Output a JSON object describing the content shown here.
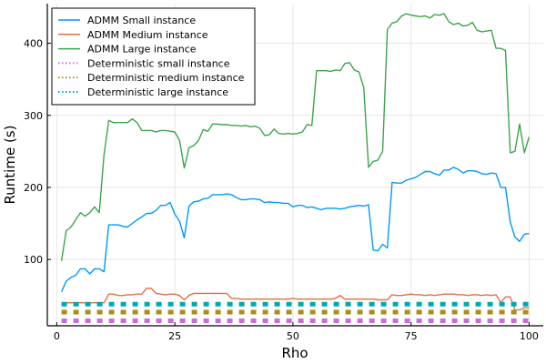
{
  "chart_data": {
    "type": "line",
    "title": "",
    "xlabel": "Rho",
    "ylabel": "Runtime (s)",
    "xlim": [
      -2,
      103
    ],
    "ylim": [
      8,
      455
    ],
    "xticks": [
      0,
      25,
      50,
      75,
      100
    ],
    "yticks": [
      100,
      200,
      300,
      400
    ],
    "grid": true,
    "legend_position": "top-left",
    "x": [
      1,
      2,
      3,
      4,
      5,
      6,
      7,
      8,
      9,
      10,
      11,
      12,
      13,
      14,
      15,
      16,
      17,
      18,
      19,
      20,
      21,
      22,
      23,
      24,
      25,
      26,
      27,
      28,
      29,
      30,
      31,
      32,
      33,
      34,
      35,
      36,
      37,
      38,
      39,
      40,
      41,
      42,
      43,
      44,
      45,
      46,
      47,
      48,
      49,
      50,
      51,
      52,
      53,
      54,
      55,
      56,
      57,
      58,
      59,
      60,
      61,
      62,
      63,
      64,
      65,
      66,
      67,
      68,
      69,
      70,
      71,
      72,
      73,
      74,
      75,
      76,
      77,
      78,
      79,
      80,
      81,
      82,
      83,
      84,
      85,
      86,
      87,
      88,
      89,
      90,
      91,
      92,
      93,
      94,
      95,
      96,
      97,
      98,
      99,
      100
    ],
    "series": [
      {
        "name": "ADMM Small instance",
        "color": "#009af9",
        "style": "solid",
        "values": [
          55,
          70,
          75,
          78,
          87,
          87,
          80,
          87,
          87,
          83,
          148,
          148,
          148,
          146,
          145,
          150,
          155,
          159,
          164,
          164,
          168,
          175,
          175,
          179,
          163,
          153,
          130,
          174,
          180,
          181,
          184,
          185,
          190,
          190,
          190,
          191,
          190,
          186,
          183,
          183,
          184,
          184,
          183,
          179,
          180,
          179,
          179,
          178,
          178,
          173,
          175,
          175,
          172,
          173,
          171,
          169,
          171,
          171,
          171,
          170,
          171,
          173,
          174,
          175,
          174,
          176,
          113,
          112,
          121,
          116,
          207,
          206,
          206,
          210,
          212,
          214,
          218,
          222,
          222,
          219,
          217,
          224,
          224,
          228,
          225,
          220,
          223,
          223,
          222,
          219,
          218,
          220,
          219,
          200,
          200,
          152,
          131,
          125,
          135,
          136
        ]
      },
      {
        "name": "ADMM Medium instance",
        "color": "#e26f46",
        "style": "solid",
        "values": [
          36,
          40,
          40,
          40,
          40,
          40,
          40,
          40,
          40,
          40,
          52,
          52,
          50,
          50,
          51,
          51,
          52,
          52,
          60,
          60,
          53,
          52,
          51,
          52,
          52,
          50,
          44,
          50,
          53,
          53,
          53,
          53,
          53,
          53,
          53,
          53,
          46,
          46,
          45,
          45,
          45,
          45,
          45,
          45,
          45,
          45,
          45,
          45,
          45,
          46,
          45,
          45,
          45,
          45,
          45,
          45,
          45,
          45,
          46,
          50,
          45,
          45,
          45,
          45,
          45,
          45,
          45,
          44,
          44,
          44,
          51,
          50,
          50,
          51,
          52,
          51,
          51,
          50,
          51,
          50,
          51,
          52,
          52,
          52,
          51,
          51,
          50,
          51,
          51,
          50,
          51,
          50,
          51,
          40,
          48,
          48,
          30,
          30,
          33,
          33
        ]
      },
      {
        "name": "ADMM Large instance",
        "color": "#3da44d",
        "style": "solid",
        "values": [
          98,
          140,
          145,
          155,
          165,
          160,
          165,
          173,
          165,
          245,
          293,
          290,
          290,
          290,
          290,
          295,
          290,
          279,
          279,
          279,
          277,
          279,
          279,
          278,
          277,
          265,
          227,
          255,
          258,
          265,
          280,
          278,
          288,
          288,
          287,
          287,
          286,
          286,
          285,
          286,
          284,
          285,
          282,
          272,
          273,
          281,
          275,
          274,
          275,
          274,
          275,
          277,
          287,
          286,
          362,
          362,
          362,
          361,
          363,
          362,
          372,
          373,
          363,
          360,
          338,
          228,
          236,
          238,
          250,
          419,
          428,
          430,
          438,
          441,
          439,
          438,
          437,
          438,
          435,
          440,
          439,
          441,
          430,
          426,
          428,
          424,
          425,
          429,
          418,
          416,
          417,
          418,
          393,
          393,
          390,
          248,
          250,
          288,
          248,
          270
        ]
      },
      {
        "name": "Deterministic small instance",
        "color": "#c271d2",
        "style": "dotted",
        "values": [
          15,
          15,
          15,
          15,
          15,
          15,
          15,
          15,
          15,
          15,
          15,
          15,
          15,
          15,
          15,
          15,
          15,
          15,
          15,
          15,
          15,
          15,
          15,
          15,
          15,
          15,
          15,
          15,
          15,
          15,
          15,
          15,
          15,
          15,
          15,
          15,
          15,
          15,
          15,
          15,
          15,
          15,
          15,
          15,
          15,
          15,
          15,
          15,
          15,
          15,
          15,
          15,
          15,
          15,
          15,
          15,
          15,
          15,
          15,
          15,
          15,
          15,
          15,
          15,
          15,
          15,
          15,
          15,
          15,
          15,
          15,
          15,
          15,
          15,
          15,
          15,
          15,
          15,
          15,
          15,
          15,
          15,
          15,
          15,
          15,
          15,
          15,
          15,
          15,
          15,
          15,
          15,
          15,
          15,
          15,
          15,
          15,
          15,
          15,
          15
        ]
      },
      {
        "name": "Deterministic medium instance",
        "color": "#ac8d18",
        "style": "dotted",
        "values": [
          27,
          27,
          27,
          27,
          27,
          27,
          27,
          27,
          27,
          27,
          27,
          27,
          27,
          27,
          27,
          27,
          27,
          27,
          27,
          27,
          27,
          27,
          27,
          27,
          27,
          27,
          27,
          27,
          27,
          27,
          27,
          27,
          27,
          27,
          27,
          27,
          27,
          27,
          27,
          27,
          27,
          27,
          27,
          27,
          27,
          27,
          27,
          27,
          27,
          27,
          27,
          27,
          27,
          27,
          27,
          27,
          27,
          27,
          27,
          27,
          27,
          27,
          27,
          27,
          27,
          27,
          27,
          27,
          27,
          27,
          27,
          27,
          27,
          27,
          27,
          27,
          27,
          27,
          27,
          27,
          27,
          27,
          27,
          27,
          27,
          27,
          27,
          27,
          27,
          27,
          27,
          27,
          27,
          27,
          27,
          27,
          27,
          27,
          27,
          27
        ]
      },
      {
        "name": "Deterministic large instance",
        "color": "#00a9ad",
        "style": "dotted",
        "values": [
          38,
          38,
          38,
          38,
          38,
          38,
          38,
          38,
          38,
          38,
          38,
          38,
          38,
          38,
          38,
          38,
          38,
          38,
          38,
          38,
          38,
          38,
          38,
          38,
          38,
          38,
          38,
          38,
          38,
          38,
          38,
          38,
          38,
          38,
          38,
          38,
          38,
          38,
          38,
          38,
          38,
          38,
          38,
          38,
          38,
          38,
          38,
          38,
          38,
          38,
          38,
          38,
          38,
          38,
          38,
          38,
          38,
          38,
          38,
          38,
          38,
          38,
          38,
          38,
          38,
          38,
          38,
          38,
          38,
          38,
          38,
          38,
          38,
          38,
          38,
          38,
          38,
          38,
          38,
          38,
          38,
          38,
          38,
          38,
          38,
          38,
          38,
          38,
          38,
          38,
          38,
          38,
          38,
          38,
          38,
          38,
          38,
          38,
          38,
          38
        ]
      }
    ]
  }
}
